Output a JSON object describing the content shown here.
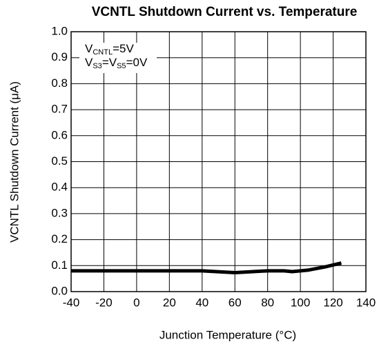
{
  "chart_data": {
    "type": "line",
    "title": "VCNTL Shutdown Current vs. Temperature",
    "xlabel": "Junction Temperature (°C)",
    "ylabel": "VCNTL Shutdown Current (μA)",
    "annotations": [
      [
        "V",
        "CNTL",
        "=5V"
      ],
      [
        "V",
        "S3",
        "=V",
        "S5",
        "=0V"
      ]
    ],
    "x": [
      -40,
      0,
      40,
      60,
      80,
      90,
      95,
      105,
      115,
      125
    ],
    "series": [
      {
        "color": "#000000",
        "values": [
          0.08,
          0.08,
          0.08,
          0.073,
          0.08,
          0.08,
          0.077,
          0.083,
          0.095,
          0.11
        ]
      }
    ],
    "xlim": [
      -40,
      140
    ],
    "xticks": [
      -40,
      -20,
      0,
      20,
      40,
      60,
      80,
      100,
      120,
      140
    ],
    "ylim": [
      0,
      1
    ],
    "yticks": [
      {
        "value": 0,
        "label": "0.0"
      },
      0.1,
      0.2,
      0.3,
      0.4,
      0.5,
      0.6,
      0.7,
      0.8,
      0.9,
      {
        "value": 1,
        "label": "1.0"
      }
    ],
    "grid": true
  }
}
